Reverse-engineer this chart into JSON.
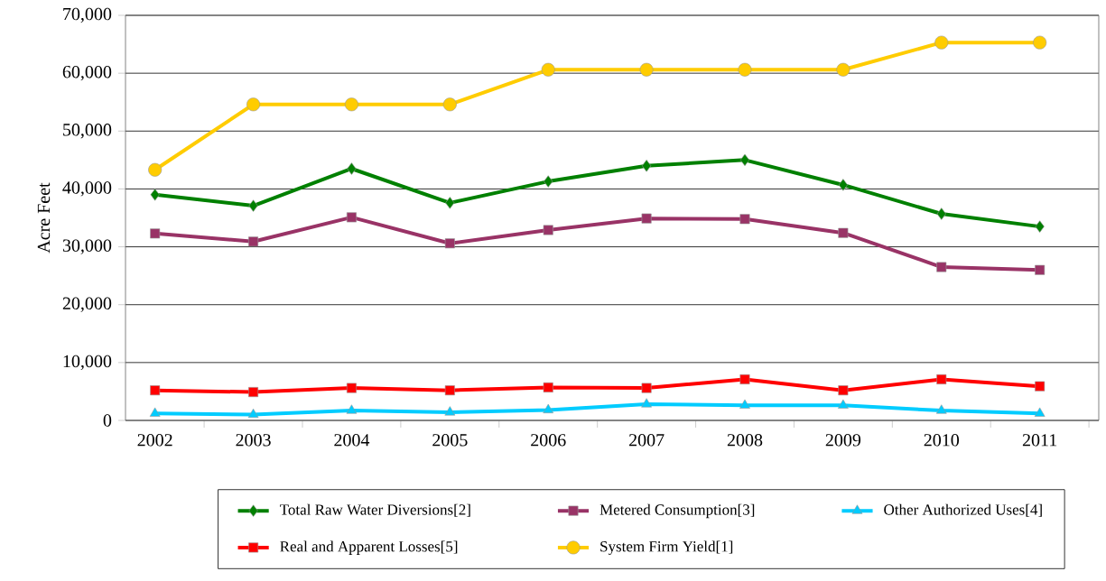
{
  "chart_data": {
    "type": "line",
    "ylabel": "Acre Feet",
    "categories": [
      "2002",
      "2003",
      "2004",
      "2005",
      "2006",
      "2007",
      "2008",
      "2009",
      "2010",
      "2011"
    ],
    "series": [
      {
        "name": "Total Raw Water Diversions[2]",
        "color": "#008000",
        "marker": "diamond",
        "values": [
          39000,
          37100,
          43500,
          37600,
          41300,
          44000,
          45000,
          40700,
          35700,
          33500
        ]
      },
      {
        "name": "Metered Consumption[3]",
        "color": "#993366",
        "marker": "square",
        "values": [
          32300,
          30900,
          35100,
          30600,
          32900,
          34900,
          34800,
          32400,
          26500,
          26000
        ]
      },
      {
        "name": "Other Authorized Uses[4]",
        "color": "#00ccff",
        "marker": "triangle",
        "values": [
          1200,
          1000,
          1700,
          1400,
          1800,
          2800,
          2600,
          2600,
          1700,
          1200
        ]
      },
      {
        "name": "Real and Apparent Losses[5]",
        "color": "#ff0000",
        "marker": "square",
        "values": [
          5200,
          4900,
          5600,
          5200,
          5700,
          5600,
          7100,
          5200,
          7100,
          5900
        ]
      },
      {
        "name": "System Firm Yield[1]",
        "color": "#ffcc00",
        "marker": "circle",
        "values": [
          43300,
          54600,
          54600,
          54600,
          60600,
          60600,
          60600,
          60600,
          65300,
          65300
        ]
      }
    ],
    "ylim": [
      0,
      70000
    ],
    "yticks": [
      0,
      {
        "value": 10000,
        "label": "10,000"
      },
      {
        "value": 20000,
        "label": "20,000"
      },
      {
        "value": 30000,
        "label": "30,000"
      },
      {
        "value": 40000,
        "label": "40,000"
      },
      {
        "value": 50000,
        "label": "50,000"
      },
      {
        "value": 60000,
        "label": "60,000"
      },
      {
        "value": 70000,
        "label": "70,000"
      }
    ],
    "grid": "y",
    "legend": "bottom"
  }
}
